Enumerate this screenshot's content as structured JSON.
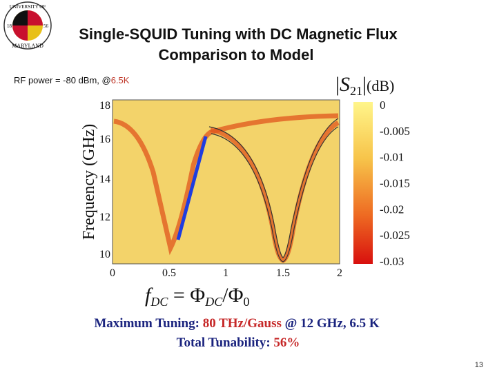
{
  "logo": {
    "top": "UNIVERSITY OF",
    "bottom": "MARYLAND",
    "left_year": "18",
    "right_year": "56"
  },
  "title": {
    "line1": "Single-SQUID Tuning with DC Magnetic Flux",
    "line2": "Comparison to Model"
  },
  "conditions": {
    "prefix": "RF power = -80 dBm, @",
    "highlight": "6.5K"
  },
  "plot": {
    "y_label": "Frequency (GHz)",
    "y_ticks": [
      "18",
      "16",
      "14",
      "12",
      "10"
    ],
    "x_ticks": [
      "0",
      "0.5",
      "1",
      "1.5",
      "2"
    ],
    "x_label": {
      "f": "f",
      "f_sub": "DC",
      "eq": " = Φ",
      "phi_sub": "DC",
      "div": "/Φ",
      "zero_sub": "0"
    },
    "colorbar_label": {
      "open": "|",
      "s": "S",
      "s_sub": "21",
      "close": "|",
      "unit": "(dB)"
    },
    "colorbar_ticks": [
      "0",
      "-0.005",
      "-0.01",
      "-0.015",
      "-0.02",
      "-0.025",
      "-0.03"
    ]
  },
  "summary": {
    "line1": {
      "label": "Maximum Tuning: ",
      "value": "80 THz/Gauss",
      "rest": " @ 12 GHz, 6.5 K"
    },
    "line2": {
      "label": "Total Tunability: ",
      "value": "56%"
    }
  },
  "page_number": "13"
}
